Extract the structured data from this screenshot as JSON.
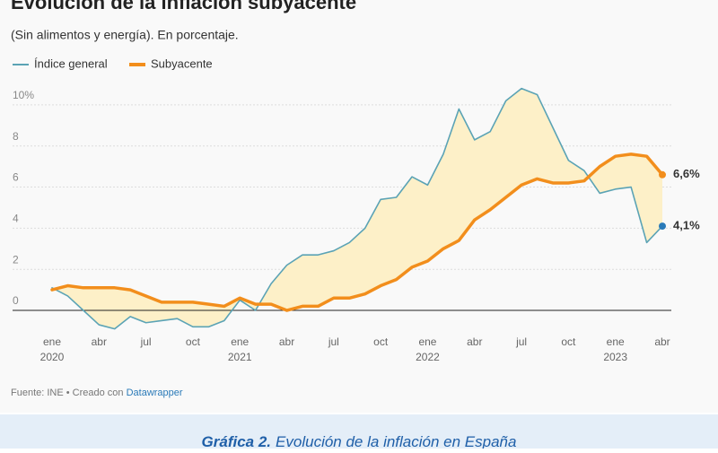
{
  "chart_data": {
    "type": "line",
    "title": "Evolución de la inflación subyacente",
    "subtitle": "(Sin alimentos y energía). En porcentaje.",
    "source": "Fuente: INE • Creado con ",
    "credit": "Datawrapper",
    "caption_label": "Gráfica 2.",
    "caption": "Evolución de la inflación en España",
    "categories": [
      "ene",
      null,
      null,
      "abr",
      null,
      null,
      "jul",
      null,
      null,
      "oct",
      null,
      null,
      "ene",
      null,
      null,
      "abr",
      null,
      null,
      "jul",
      null,
      null,
      "oct",
      null,
      null,
      "ene",
      null,
      null,
      "abr",
      null,
      null,
      "jul",
      null,
      null,
      "oct",
      null,
      null,
      "ene",
      null,
      null,
      "abr"
    ],
    "category_years": [
      "2020",
      null,
      null,
      null,
      null,
      null,
      null,
      null,
      null,
      null,
      null,
      null,
      "2021",
      null,
      null,
      null,
      null,
      null,
      null,
      null,
      null,
      null,
      null,
      null,
      "2022",
      null,
      null,
      null,
      null,
      null,
      null,
      null,
      null,
      null,
      null,
      null,
      "2023",
      null,
      null,
      null
    ],
    "series": [
      {
        "name": "Índice general",
        "color": "#5ba3b5",
        "values": [
          1.1,
          0.7,
          0.0,
          -0.7,
          -0.9,
          -0.3,
          -0.6,
          -0.5,
          -0.4,
          -0.8,
          -0.8,
          -0.5,
          0.5,
          0.0,
          1.3,
          2.2,
          2.7,
          2.7,
          2.9,
          3.3,
          4.0,
          5.4,
          5.5,
          6.5,
          6.1,
          7.6,
          9.8,
          8.3,
          8.7,
          10.2,
          10.8,
          10.5,
          8.9,
          7.3,
          6.8,
          5.7,
          5.9,
          6.0,
          3.3,
          4.1
        ],
        "end_label": "4,1%"
      },
      {
        "name": "Subyacente",
        "color": "#f28e1c",
        "values": [
          1.0,
          1.2,
          1.1,
          1.1,
          1.1,
          1.0,
          0.7,
          0.4,
          0.4,
          0.4,
          0.3,
          0.2,
          0.6,
          0.3,
          0.3,
          0.0,
          0.2,
          0.2,
          0.6,
          0.6,
          0.8,
          1.2,
          1.5,
          2.1,
          2.4,
          3.0,
          3.4,
          4.4,
          4.9,
          5.5,
          6.1,
          6.4,
          6.2,
          6.2,
          6.3,
          7.0,
          7.5,
          7.6,
          7.5,
          6.6
        ],
        "end_label": "6,6%"
      }
    ],
    "fill_between_color": "#fdf0c8",
    "ylim": [
      -1.2,
      11
    ],
    "yticks": [
      0,
      2,
      4,
      6,
      8,
      {
        "value": 10,
        "label": "10%"
      }
    ],
    "grid": true
  }
}
